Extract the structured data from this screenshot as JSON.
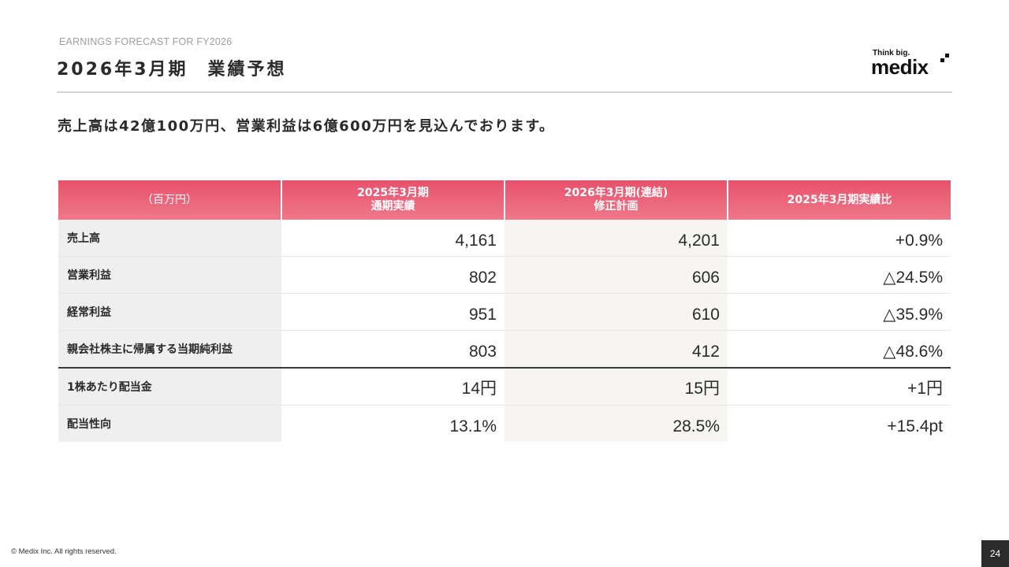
{
  "header": {
    "eyebrow": "EARNINGS FORECAST FOR FY2026",
    "title": "2026年3月期　業績予想",
    "logo_tagline": "Think big.",
    "logo_word": "medix"
  },
  "lead": "売上高は42億100万円、営業利益は6億600万円を見込んでおります。",
  "table": {
    "headers": [
      {
        "line1": "（百万円）",
        "line2": ""
      },
      {
        "line1": "2025年3月期",
        "line2": "通期実績"
      },
      {
        "line1": "2026年3月期(連結)",
        "line2": "修正計画"
      },
      {
        "line1": "2025年3月期実績比",
        "line2": ""
      }
    ],
    "rows": [
      {
        "label": "売上高",
        "actual": "4,161",
        "plan": "4,201",
        "change": "+0.9%"
      },
      {
        "label": "営業利益",
        "actual": "802",
        "plan": "606",
        "change": "△24.5%"
      },
      {
        "label": "経常利益",
        "actual": "951",
        "plan": "610",
        "change": "△35.9%"
      },
      {
        "label": "親会社株主に帰属する当期純利益",
        "actual": "803",
        "plan": "412",
        "change": "△48.6%"
      },
      {
        "label": "1株あたり配当金",
        "actual": "14円",
        "plan": "15円",
        "change": "+1円"
      },
      {
        "label": "配当性向",
        "actual": "13.1%",
        "plan": "28.5%",
        "change": "+15.4pt"
      }
    ]
  },
  "footer": {
    "copyright": "© Medix Inc. All rights reserved.",
    "page_number": "24"
  },
  "colors": {
    "header_gradient_top": "#e8516c",
    "header_gradient_bottom": "#ef7889",
    "logo_accent": "#e8516c"
  }
}
